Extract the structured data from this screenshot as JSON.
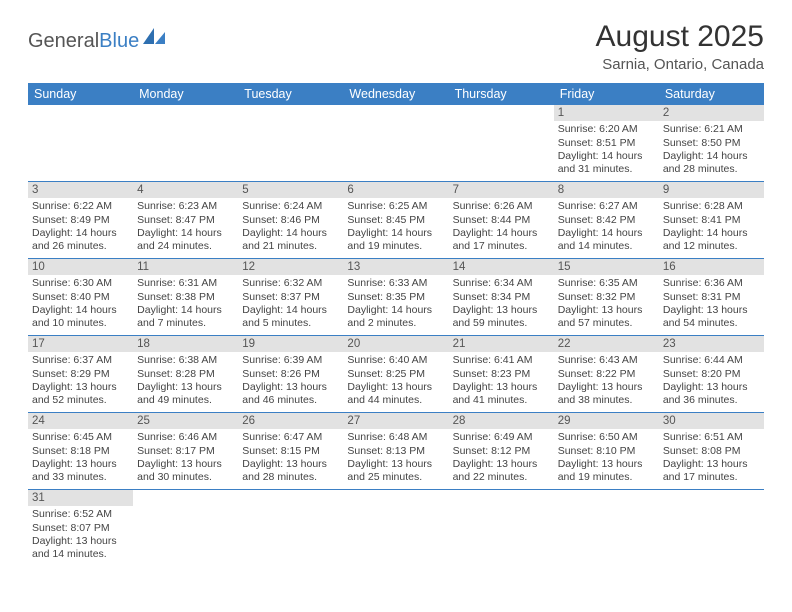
{
  "logo": {
    "text_general": "General",
    "text_blue": "Blue"
  },
  "header": {
    "month_title": "August 2025",
    "location": "Sarnia, Ontario, Canada"
  },
  "colors": {
    "header_bg": "#3b7fc4",
    "header_text": "#ffffff",
    "daynum_bg": "#e2e2e2",
    "row_border": "#3b7fc4",
    "body_text": "#444444"
  },
  "weekdays": [
    "Sunday",
    "Monday",
    "Tuesday",
    "Wednesday",
    "Thursday",
    "Friday",
    "Saturday"
  ],
  "weeks": [
    [
      null,
      null,
      null,
      null,
      null,
      {
        "n": "1",
        "sr": "6:20 AM",
        "ss": "8:51 PM",
        "dl": "14 hours and 31 minutes."
      },
      {
        "n": "2",
        "sr": "6:21 AM",
        "ss": "8:50 PM",
        "dl": "14 hours and 28 minutes."
      }
    ],
    [
      {
        "n": "3",
        "sr": "6:22 AM",
        "ss": "8:49 PM",
        "dl": "14 hours and 26 minutes."
      },
      {
        "n": "4",
        "sr": "6:23 AM",
        "ss": "8:47 PM",
        "dl": "14 hours and 24 minutes."
      },
      {
        "n": "5",
        "sr": "6:24 AM",
        "ss": "8:46 PM",
        "dl": "14 hours and 21 minutes."
      },
      {
        "n": "6",
        "sr": "6:25 AM",
        "ss": "8:45 PM",
        "dl": "14 hours and 19 minutes."
      },
      {
        "n": "7",
        "sr": "6:26 AM",
        "ss": "8:44 PM",
        "dl": "14 hours and 17 minutes."
      },
      {
        "n": "8",
        "sr": "6:27 AM",
        "ss": "8:42 PM",
        "dl": "14 hours and 14 minutes."
      },
      {
        "n": "9",
        "sr": "6:28 AM",
        "ss": "8:41 PM",
        "dl": "14 hours and 12 minutes."
      }
    ],
    [
      {
        "n": "10",
        "sr": "6:30 AM",
        "ss": "8:40 PM",
        "dl": "14 hours and 10 minutes."
      },
      {
        "n": "11",
        "sr": "6:31 AM",
        "ss": "8:38 PM",
        "dl": "14 hours and 7 minutes."
      },
      {
        "n": "12",
        "sr": "6:32 AM",
        "ss": "8:37 PM",
        "dl": "14 hours and 5 minutes."
      },
      {
        "n": "13",
        "sr": "6:33 AM",
        "ss": "8:35 PM",
        "dl": "14 hours and 2 minutes."
      },
      {
        "n": "14",
        "sr": "6:34 AM",
        "ss": "8:34 PM",
        "dl": "13 hours and 59 minutes."
      },
      {
        "n": "15",
        "sr": "6:35 AM",
        "ss": "8:32 PM",
        "dl": "13 hours and 57 minutes."
      },
      {
        "n": "16",
        "sr": "6:36 AM",
        "ss": "8:31 PM",
        "dl": "13 hours and 54 minutes."
      }
    ],
    [
      {
        "n": "17",
        "sr": "6:37 AM",
        "ss": "8:29 PM",
        "dl": "13 hours and 52 minutes."
      },
      {
        "n": "18",
        "sr": "6:38 AM",
        "ss": "8:28 PM",
        "dl": "13 hours and 49 minutes."
      },
      {
        "n": "19",
        "sr": "6:39 AM",
        "ss": "8:26 PM",
        "dl": "13 hours and 46 minutes."
      },
      {
        "n": "20",
        "sr": "6:40 AM",
        "ss": "8:25 PM",
        "dl": "13 hours and 44 minutes."
      },
      {
        "n": "21",
        "sr": "6:41 AM",
        "ss": "8:23 PM",
        "dl": "13 hours and 41 minutes."
      },
      {
        "n": "22",
        "sr": "6:43 AM",
        "ss": "8:22 PM",
        "dl": "13 hours and 38 minutes."
      },
      {
        "n": "23",
        "sr": "6:44 AM",
        "ss": "8:20 PM",
        "dl": "13 hours and 36 minutes."
      }
    ],
    [
      {
        "n": "24",
        "sr": "6:45 AM",
        "ss": "8:18 PM",
        "dl": "13 hours and 33 minutes."
      },
      {
        "n": "25",
        "sr": "6:46 AM",
        "ss": "8:17 PM",
        "dl": "13 hours and 30 minutes."
      },
      {
        "n": "26",
        "sr": "6:47 AM",
        "ss": "8:15 PM",
        "dl": "13 hours and 28 minutes."
      },
      {
        "n": "27",
        "sr": "6:48 AM",
        "ss": "8:13 PM",
        "dl": "13 hours and 25 minutes."
      },
      {
        "n": "28",
        "sr": "6:49 AM",
        "ss": "8:12 PM",
        "dl": "13 hours and 22 minutes."
      },
      {
        "n": "29",
        "sr": "6:50 AM",
        "ss": "8:10 PM",
        "dl": "13 hours and 19 minutes."
      },
      {
        "n": "30",
        "sr": "6:51 AM",
        "ss": "8:08 PM",
        "dl": "13 hours and 17 minutes."
      }
    ],
    [
      {
        "n": "31",
        "sr": "6:52 AM",
        "ss": "8:07 PM",
        "dl": "13 hours and 14 minutes."
      },
      null,
      null,
      null,
      null,
      null,
      null
    ]
  ],
  "labels": {
    "sunrise_prefix": "Sunrise: ",
    "sunset_prefix": "Sunset: ",
    "daylight_prefix": "Daylight: "
  }
}
